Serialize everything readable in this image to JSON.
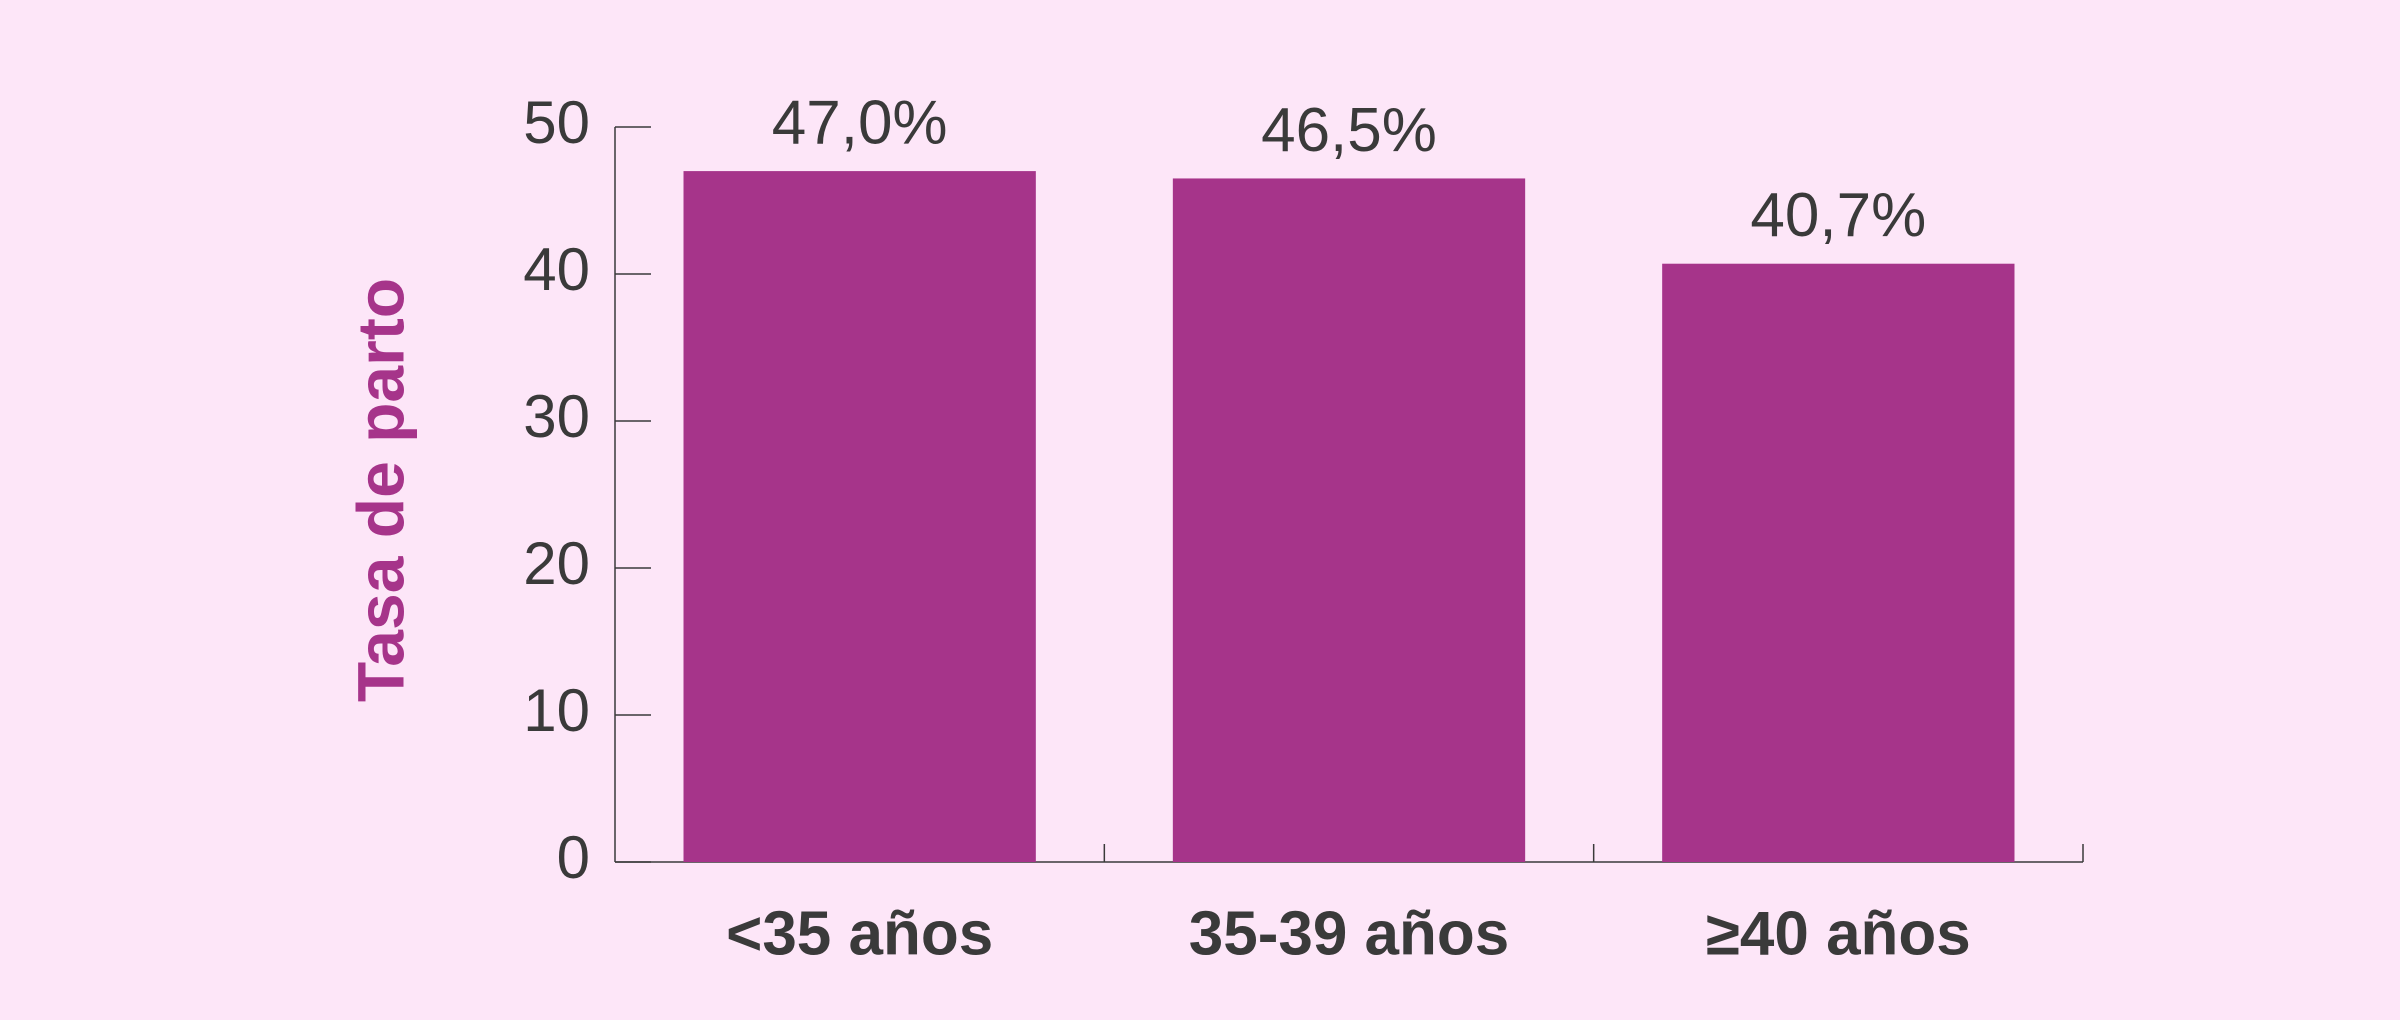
{
  "chart_data": {
    "type": "bar",
    "y_label": "Tasa de parto",
    "categories": [
      "<35 años",
      "35-39 años",
      "≥40 años"
    ],
    "values": [
      47.0,
      46.5,
      40.7
    ],
    "value_labels": [
      "47,0%",
      "46,5%",
      "40,7%"
    ],
    "color": "#a6348a",
    "label_color": "#a6348a",
    "ylim": [
      0,
      50
    ],
    "yticks": [
      0,
      10,
      20,
      30,
      40,
      50
    ]
  }
}
